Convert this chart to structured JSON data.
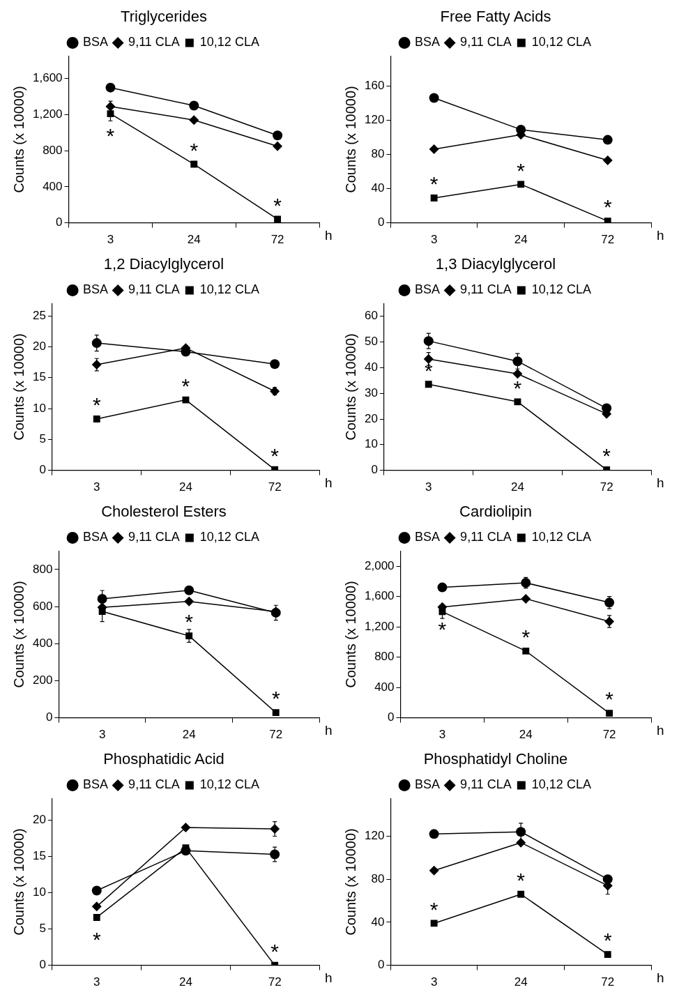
{
  "chart_data": [
    {
      "type": "line",
      "title": "Triglycerides",
      "xlabel": "h",
      "ylabel": "Counts (x 10000)",
      "categories": [
        "3",
        "24",
        "72"
      ],
      "ylim": [
        0,
        1850
      ],
      "yticks": [
        0,
        400,
        800,
        {
          "value": 1200,
          "label": "1,200"
        },
        {
          "value": 1600,
          "label": "1,600"
        }
      ],
      "legend": "top",
      "series": [
        {
          "name": "BSA",
          "color": "#000000",
          "marker": "circle",
          "values": [
            1500,
            1300,
            970
          ]
        },
        {
          "name": "9,11 CLA",
          "color": "#000000",
          "marker": "diamond",
          "values": [
            1290,
            1140,
            850
          ],
          "errors": [
            60,
            null,
            null
          ]
        },
        {
          "name": "10,12 CLA",
          "color": "#000000",
          "marker": "square",
          "values": [
            1210,
            650,
            40
          ],
          "errors": [
            80,
            null,
            null
          ]
        }
      ],
      "annotations": [
        {
          "text": "*",
          "x": "3",
          "y": 1210
        },
        {
          "text": "*",
          "x": "24",
          "y": 650
        },
        {
          "text": "*",
          "x": "72",
          "y": 40
        }
      ]
    },
    {
      "type": "line",
      "title": "Free Fatty Acids",
      "xlabel": "h",
      "ylabel": "Counts (x 10000)",
      "categories": [
        "3",
        "24",
        "72"
      ],
      "ylim": [
        0,
        195
      ],
      "yticks": [
        0,
        40,
        80,
        120,
        160
      ],
      "legend": "top",
      "series": [
        {
          "name": "BSA",
          "color": "#000000",
          "marker": "circle",
          "values": [
            146,
            109,
            97
          ]
        },
        {
          "name": "9,11 CLA",
          "color": "#000000",
          "marker": "diamond",
          "values": [
            86,
            103,
            73
          ]
        },
        {
          "name": "10,12 CLA",
          "color": "#000000",
          "marker": "square",
          "values": [
            29,
            45,
            2
          ]
        }
      ],
      "annotations": [
        {
          "text": "*",
          "x": "3",
          "y": 29
        },
        {
          "text": "*",
          "x": "24",
          "y": 45
        },
        {
          "text": "*",
          "x": "72",
          "y": 2
        }
      ]
    },
    {
      "type": "line",
      "title": "1,2 Diacylglycerol",
      "xlabel": "h",
      "ylabel": "Counts (x 10000)",
      "categories": [
        "3",
        "24",
        "72"
      ],
      "ylim": [
        0,
        27
      ],
      "yticks": [
        0,
        5,
        10,
        15,
        20,
        25
      ],
      "legend": "top",
      "series": [
        {
          "name": "BSA",
          "color": "#000000",
          "marker": "circle",
          "values": [
            20.6,
            19.2,
            17.2
          ],
          "errors": [
            1.3,
            null,
            null
          ]
        },
        {
          "name": "9,11 CLA",
          "color": "#000000",
          "marker": "diamond",
          "values": [
            17.1,
            19.8,
            12.8
          ],
          "errors": [
            1.0,
            null,
            0.6
          ]
        },
        {
          "name": "10,12 CLA",
          "color": "#000000",
          "marker": "square",
          "values": [
            8.3,
            11.4,
            0.1
          ]
        }
      ],
      "annotations": [
        {
          "text": "*",
          "x": "3",
          "y": 8.3
        },
        {
          "text": "*",
          "x": "24",
          "y": 11.4
        },
        {
          "text": "*",
          "x": "72",
          "y": 0.1
        }
      ]
    },
    {
      "type": "line",
      "title": "1,3 Diacylglycerol",
      "xlabel": "h",
      "ylabel": "Counts (x 10000)",
      "categories": [
        "3",
        "24",
        "72"
      ],
      "ylim": [
        0,
        65
      ],
      "yticks": [
        0,
        10,
        20,
        30,
        40,
        50,
        60
      ],
      "legend": "top",
      "series": [
        {
          "name": "BSA",
          "color": "#000000",
          "marker": "circle",
          "values": [
            50.4,
            42.5,
            24.2
          ],
          "errors": [
            3,
            3,
            null
          ]
        },
        {
          "name": "9,11 CLA",
          "color": "#000000",
          "marker": "diamond",
          "values": [
            43.4,
            37.6,
            22.0
          ],
          "errors": [
            2.5,
            null,
            null
          ]
        },
        {
          "name": "10,12 CLA",
          "color": "#000000",
          "marker": "square",
          "values": [
            33.5,
            26.7,
            0.2
          ]
        }
      ],
      "annotations": [
        {
          "text": "*",
          "x": "3",
          "y": 33.5
        },
        {
          "text": "*",
          "x": "24",
          "y": 26.7
        },
        {
          "text": "*",
          "x": "72",
          "y": 0.2
        }
      ]
    },
    {
      "type": "line",
      "title": "Cholesterol Esters",
      "xlabel": "h",
      "ylabel": "Counts (x 10000)",
      "categories": [
        "3",
        "24",
        "72"
      ],
      "ylim": [
        0,
        900
      ],
      "yticks": [
        0,
        200,
        400,
        600,
        800
      ],
      "legend": "top",
      "series": [
        {
          "name": "BSA",
          "color": "#000000",
          "marker": "circle",
          "values": [
            642,
            688,
            567
          ],
          "errors": [
            45,
            null,
            40
          ]
        },
        {
          "name": "9,11 CLA",
          "color": "#000000",
          "marker": "diamond",
          "values": [
            596,
            628,
            573
          ]
        },
        {
          "name": "10,12 CLA",
          "color": "#000000",
          "marker": "square",
          "values": [
            574,
            442,
            28
          ],
          "errors": [
            55,
            35,
            null
          ]
        }
      ],
      "annotations": [
        {
          "text": "*",
          "x": "24",
          "y": 442
        },
        {
          "text": "*",
          "x": "72",
          "y": 28
        }
      ]
    },
    {
      "type": "line",
      "title": "Cardiolipin",
      "xlabel": "h",
      "ylabel": "Counts (x 10000)",
      "categories": [
        "3",
        "24",
        "72"
      ],
      "ylim": [
        0,
        2200
      ],
      "yticks": [
        0,
        400,
        800,
        {
          "value": 1200,
          "label": "1,200"
        },
        {
          "value": 1600,
          "label": "1,600"
        },
        {
          "value": 2000,
          "label": "2,000"
        }
      ],
      "legend": "top",
      "series": [
        {
          "name": "BSA",
          "color": "#000000",
          "marker": "circle",
          "values": [
            1720,
            1780,
            1520
          ],
          "errors": [
            null,
            70,
            80
          ]
        },
        {
          "name": "9,11 CLA",
          "color": "#000000",
          "marker": "diamond",
          "values": [
            1460,
            1570,
            1270
          ],
          "errors": [
            null,
            null,
            80
          ]
        },
        {
          "name": "10,12 CLA",
          "color": "#000000",
          "marker": "square",
          "values": [
            1400,
            880,
            60
          ],
          "errors": [
            90,
            null,
            null
          ]
        }
      ],
      "annotations": [
        {
          "text": "*",
          "x": "3",
          "y": 1460
        },
        {
          "text": "*",
          "x": "24",
          "y": 880
        },
        {
          "text": "*",
          "x": "72",
          "y": 60
        }
      ]
    },
    {
      "type": "line",
      "title": "Phosphatidic Acid",
      "xlabel": "h",
      "ylabel": "Counts (x 10000)",
      "categories": [
        "3",
        "24",
        "72"
      ],
      "ylim": [
        0,
        23
      ],
      "yticks": [
        0,
        5,
        10,
        15,
        20
      ],
      "legend": "top",
      "series": [
        {
          "name": "BSA",
          "color": "#000000",
          "marker": "circle",
          "values": [
            10.3,
            15.8,
            15.3
          ],
          "errors": [
            null,
            null,
            1.0
          ]
        },
        {
          "name": "9,11 CLA",
          "color": "#000000",
          "marker": "diamond",
          "values": [
            8.1,
            19.0,
            18.8
          ],
          "errors": [
            null,
            null,
            1.0
          ]
        },
        {
          "name": "10,12 CLA",
          "color": "#000000",
          "marker": "square",
          "values": [
            6.6,
            16.2,
            0
          ]
        }
      ],
      "annotations": [
        {
          "text": "*",
          "x": "3",
          "y": 6.6
        },
        {
          "text": "*",
          "x": "72",
          "y": 0
        }
      ]
    },
    {
      "type": "line",
      "title": "Phosphatidyl Choline",
      "xlabel": "h",
      "ylabel": "Counts (x 10000)",
      "categories": [
        "3",
        "24",
        "72"
      ],
      "ylim": [
        0,
        155
      ],
      "yticks": [
        0,
        40,
        80,
        120
      ],
      "legend": "top",
      "series": [
        {
          "name": "BSA",
          "color": "#000000",
          "marker": "circle",
          "values": [
            122,
            124,
            80
          ],
          "errors": [
            null,
            8,
            null
          ]
        },
        {
          "name": "9,11 CLA",
          "color": "#000000",
          "marker": "diamond",
          "values": [
            88,
            114,
            74
          ],
          "errors": [
            null,
            null,
            8
          ]
        },
        {
          "name": "10,12 CLA",
          "color": "#000000",
          "marker": "square",
          "values": [
            39,
            66,
            10
          ]
        }
      ],
      "annotations": [
        {
          "text": "*",
          "x": "3",
          "y": 39
        },
        {
          "text": "*",
          "x": "24",
          "y": 66
        },
        {
          "text": "*",
          "x": "72",
          "y": 10
        }
      ]
    }
  ]
}
